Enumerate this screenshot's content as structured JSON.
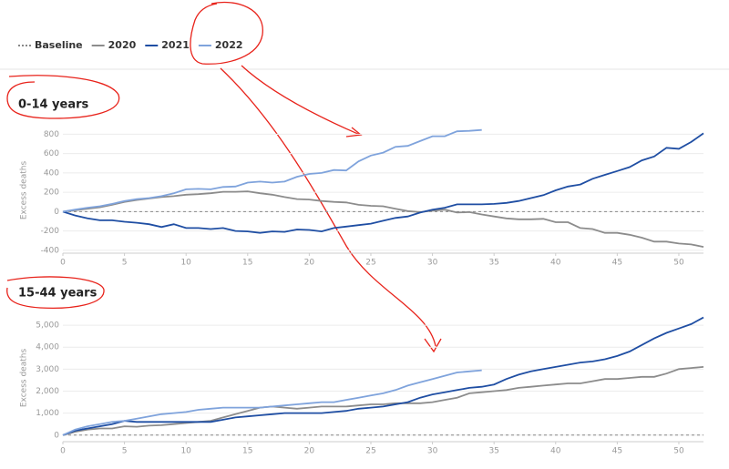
{
  "legend": {
    "title": null
  },
  "chart_data": [
    {
      "type": "line",
      "title": "0-14 years",
      "y_label": "Excess deaths",
      "x": [
        0,
        1,
        2,
        3,
        4,
        5,
        6,
        7,
        8,
        9,
        10,
        11,
        12,
        13,
        14,
        15,
        16,
        17,
        18,
        19,
        20,
        21,
        22,
        23,
        24,
        25,
        26,
        27,
        28,
        29,
        30,
        31,
        32,
        33,
        34,
        35,
        36,
        37,
        38,
        39,
        40,
        41,
        42,
        43,
        44,
        45,
        46,
        47,
        48,
        49,
        50,
        51,
        52
      ],
      "xlim": [
        0,
        52
      ],
      "xticks": [
        0,
        5,
        10,
        15,
        20,
        25,
        30,
        35,
        40,
        45,
        50
      ],
      "ylim": [
        -430,
        870
      ],
      "yticks": [
        -400,
        -200,
        0,
        200,
        400,
        600,
        800
      ],
      "grid": true,
      "series": [
        {
          "name": "Baseline",
          "color": "#888888",
          "dashed": true,
          "values": [
            0,
            0,
            0,
            0,
            0,
            0,
            0,
            0,
            0,
            0,
            0,
            0,
            0,
            0,
            0,
            0,
            0,
            0,
            0,
            0,
            0,
            0,
            0,
            0,
            0,
            0,
            0,
            0,
            0,
            0,
            0,
            0,
            0,
            0,
            0,
            0,
            0,
            0,
            0,
            0,
            0,
            0,
            0,
            0,
            0,
            0,
            0,
            0,
            0,
            0,
            0,
            0,
            0
          ]
        },
        {
          "name": "2020",
          "color": "#8c8c8c",
          "values": [
            0,
            15,
            30,
            45,
            70,
            100,
            120,
            135,
            150,
            160,
            175,
            180,
            190,
            205,
            205,
            210,
            190,
            175,
            150,
            130,
            125,
            110,
            100,
            95,
            70,
            60,
            55,
            30,
            5,
            -5,
            10,
            20,
            -10,
            -5,
            -30,
            -50,
            -70,
            -80,
            -80,
            -75,
            -110,
            -110,
            -170,
            -180,
            -220,
            -220,
            -240,
            -270,
            -310,
            -310,
            -330,
            -340,
            -365
          ]
        },
        {
          "name": "2021",
          "color": "#1f4ea3",
          "values": [
            0,
            -40,
            -70,
            -90,
            -90,
            -105,
            -115,
            -130,
            -160,
            -130,
            -170,
            -170,
            -180,
            -170,
            -200,
            -205,
            -220,
            -205,
            -210,
            -185,
            -190,
            -205,
            -170,
            -155,
            -140,
            -125,
            -95,
            -65,
            -50,
            -10,
            20,
            40,
            75,
            75,
            75,
            80,
            90,
            110,
            140,
            170,
            220,
            260,
            280,
            340,
            380,
            420,
            460,
            530,
            570,
            660,
            650,
            720,
            810
          ]
        },
        {
          "name": "2022",
          "color": "#7fa3dc",
          "values": [
            0,
            20,
            40,
            55,
            80,
            110,
            130,
            140,
            160,
            190,
            230,
            235,
            230,
            255,
            260,
            300,
            310,
            300,
            310,
            360,
            390,
            400,
            430,
            425,
            520,
            580,
            610,
            670,
            680,
            730,
            780,
            780,
            830,
            835,
            845,
            null,
            null,
            null,
            null,
            null,
            null,
            null,
            null,
            null,
            null,
            null,
            null,
            null,
            null,
            null,
            null,
            null,
            null
          ]
        }
      ]
    },
    {
      "type": "line",
      "title": "15-44 years",
      "y_label": "Excess deaths",
      "x": [
        0,
        1,
        2,
        3,
        4,
        5,
        6,
        7,
        8,
        9,
        10,
        11,
        12,
        13,
        14,
        15,
        16,
        17,
        18,
        19,
        20,
        21,
        22,
        23,
        24,
        25,
        26,
        27,
        28,
        29,
        30,
        31,
        32,
        33,
        34,
        35,
        36,
        37,
        38,
        39,
        40,
        41,
        42,
        43,
        44,
        45,
        46,
        47,
        48,
        49,
        50,
        51,
        52
      ],
      "xlim": [
        0,
        52
      ],
      "xticks": [
        0,
        5,
        10,
        15,
        20,
        25,
        30,
        35,
        40,
        45,
        50
      ],
      "ylim": [
        -300,
        5500
      ],
      "yticks": [
        0,
        {
          "value": 1000,
          "label": "1,000"
        },
        {
          "value": 2000,
          "label": "2,000"
        },
        {
          "value": 3000,
          "label": "3,000"
        },
        {
          "value": 4000,
          "label": "4,000"
        },
        {
          "value": 5000,
          "label": "5,000"
        }
      ],
      "grid": true,
      "series": [
        {
          "color": "#888888",
          "dashed": true,
          "values": [
            0,
            0,
            0,
            0,
            0,
            0,
            0,
            0,
            0,
            0,
            0,
            0,
            0,
            0,
            0,
            0,
            0,
            0,
            0,
            0,
            0,
            0,
            0,
            0,
            0,
            0,
            0,
            0,
            0,
            0,
            0,
            0,
            0,
            0,
            0,
            0,
            0,
            0,
            0,
            0,
            0,
            0,
            0,
            0,
            0,
            0,
            0,
            0,
            0,
            0,
            0,
            0,
            0
          ]
        },
        {
          "color": "#8c8c8c",
          "values": [
            0,
            150,
            250,
            300,
            300,
            400,
            380,
            430,
            450,
            500,
            550,
            600,
            650,
            800,
            950,
            1100,
            1250,
            1300,
            1250,
            1200,
            1250,
            1300,
            1300,
            1300,
            1350,
            1400,
            1400,
            1450,
            1450,
            1450,
            1500,
            1600,
            1700,
            1900,
            1950,
            2000,
            2050,
            2150,
            2200,
            2250,
            2300,
            2350,
            2350,
            2450,
            2550,
            2550,
            2600,
            2650,
            2650,
            2800,
            3000,
            3050,
            3100
          ]
        },
        {
          "color": "#1f4ea3",
          "values": [
            0,
            200,
            300,
            400,
            500,
            650,
            600,
            600,
            600,
            600,
            600,
            600,
            600,
            700,
            800,
            850,
            900,
            950,
            1000,
            1000,
            1000,
            1000,
            1050,
            1100,
            1200,
            1250,
            1300,
            1400,
            1500,
            1700,
            1850,
            1950,
            2050,
            2150,
            2200,
            2300,
            2550,
            2750,
            2900,
            3000,
            3100,
            3200,
            3300,
            3350,
            3450,
            3600,
            3800,
            4100,
            4400,
            4650,
            4850,
            5050,
            5350
          ]
        },
        {
          "color": "#7fa3dc",
          "values": [
            0,
            250,
            400,
            500,
            600,
            650,
            750,
            850,
            950,
            1000,
            1050,
            1150,
            1200,
            1250,
            1250,
            1250,
            1250,
            1300,
            1350,
            1400,
            1450,
            1500,
            1500,
            1600,
            1700,
            1800,
            1900,
            2050,
            2250,
            2400,
            2550,
            2700,
            2850,
            2900,
            2950,
            null,
            null,
            null,
            null,
            null,
            null,
            null,
            null,
            null,
            null,
            null,
            null,
            null,
            null,
            null,
            null,
            null,
            null
          ]
        }
      ]
    }
  ]
}
